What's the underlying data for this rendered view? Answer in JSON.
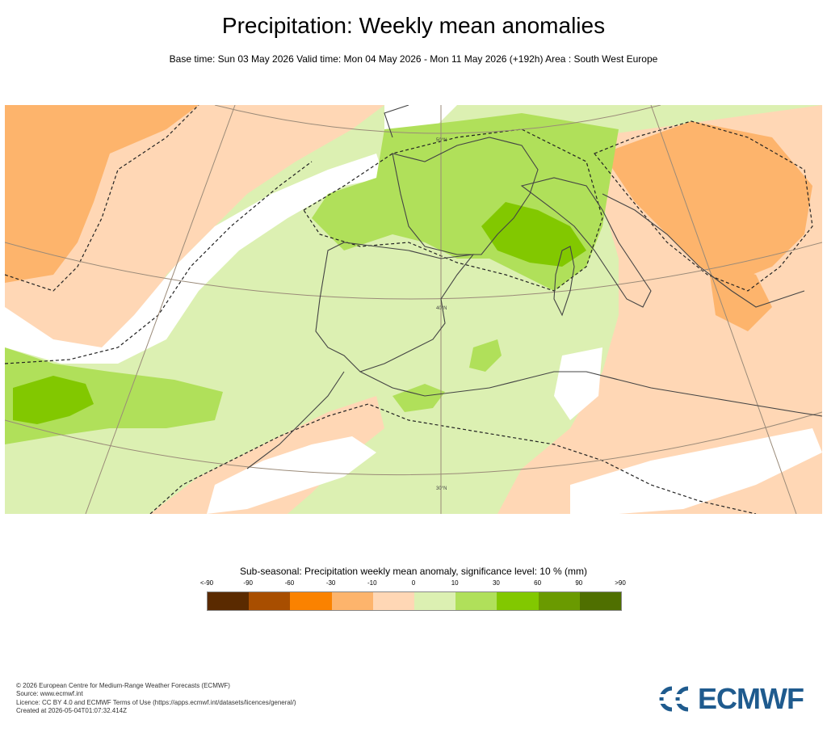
{
  "header": {
    "title": "Precipitation: Weekly mean anomalies",
    "subtitle": "Base time: Sun 03 May 2026 Valid time: Mon 04 May 2026 - Mon 11 May 2026 (+192h) Area : South West Europe"
  },
  "map": {
    "region": "South West Europe",
    "gridline_labels": {
      "lat50": "50°N",
      "lat40": "40°N",
      "lat30": "30°N"
    }
  },
  "legend": {
    "title": "Sub-seasonal: Precipitation weekly mean anomaly, significance level: 10 % (mm)",
    "ticks": [
      "<-90",
      "-90",
      "-60",
      "-30",
      "-10",
      "0",
      "10",
      "30",
      "60",
      "90",
      ">90"
    ],
    "colors": [
      "#5a2a00",
      "#a84e00",
      "#fa8200",
      "#fdb46c",
      "#ffd7b5",
      "#dcf0b2",
      "#b0e05a",
      "#82c800",
      "#6a9a00",
      "#4f6f00"
    ]
  },
  "footer": {
    "line1": "© 2026 European Centre for Medium-Range Weather Forecasts (ECMWF)",
    "line2": "Source: www.ecmwf.int",
    "line3": "Licence: CC BY 4.0 and ECMWF Terms of Use (https://apps.ecmwf.int/datasets/licences/general/)",
    "line4": "Created at 2026-05-04T01:07:32.414Z"
  },
  "logo": {
    "text": "ECMWF",
    "color": "#1f5b8e"
  },
  "palette": {
    "very_wet_mid": "#82c800",
    "wet": "#b0e05a",
    "slightly_wet": "#dcf0b2",
    "slightly_dry": "#ffd7b5",
    "dry": "#fdb46c",
    "land_outline": "#444444",
    "graticule": "#9a8a78"
  }
}
